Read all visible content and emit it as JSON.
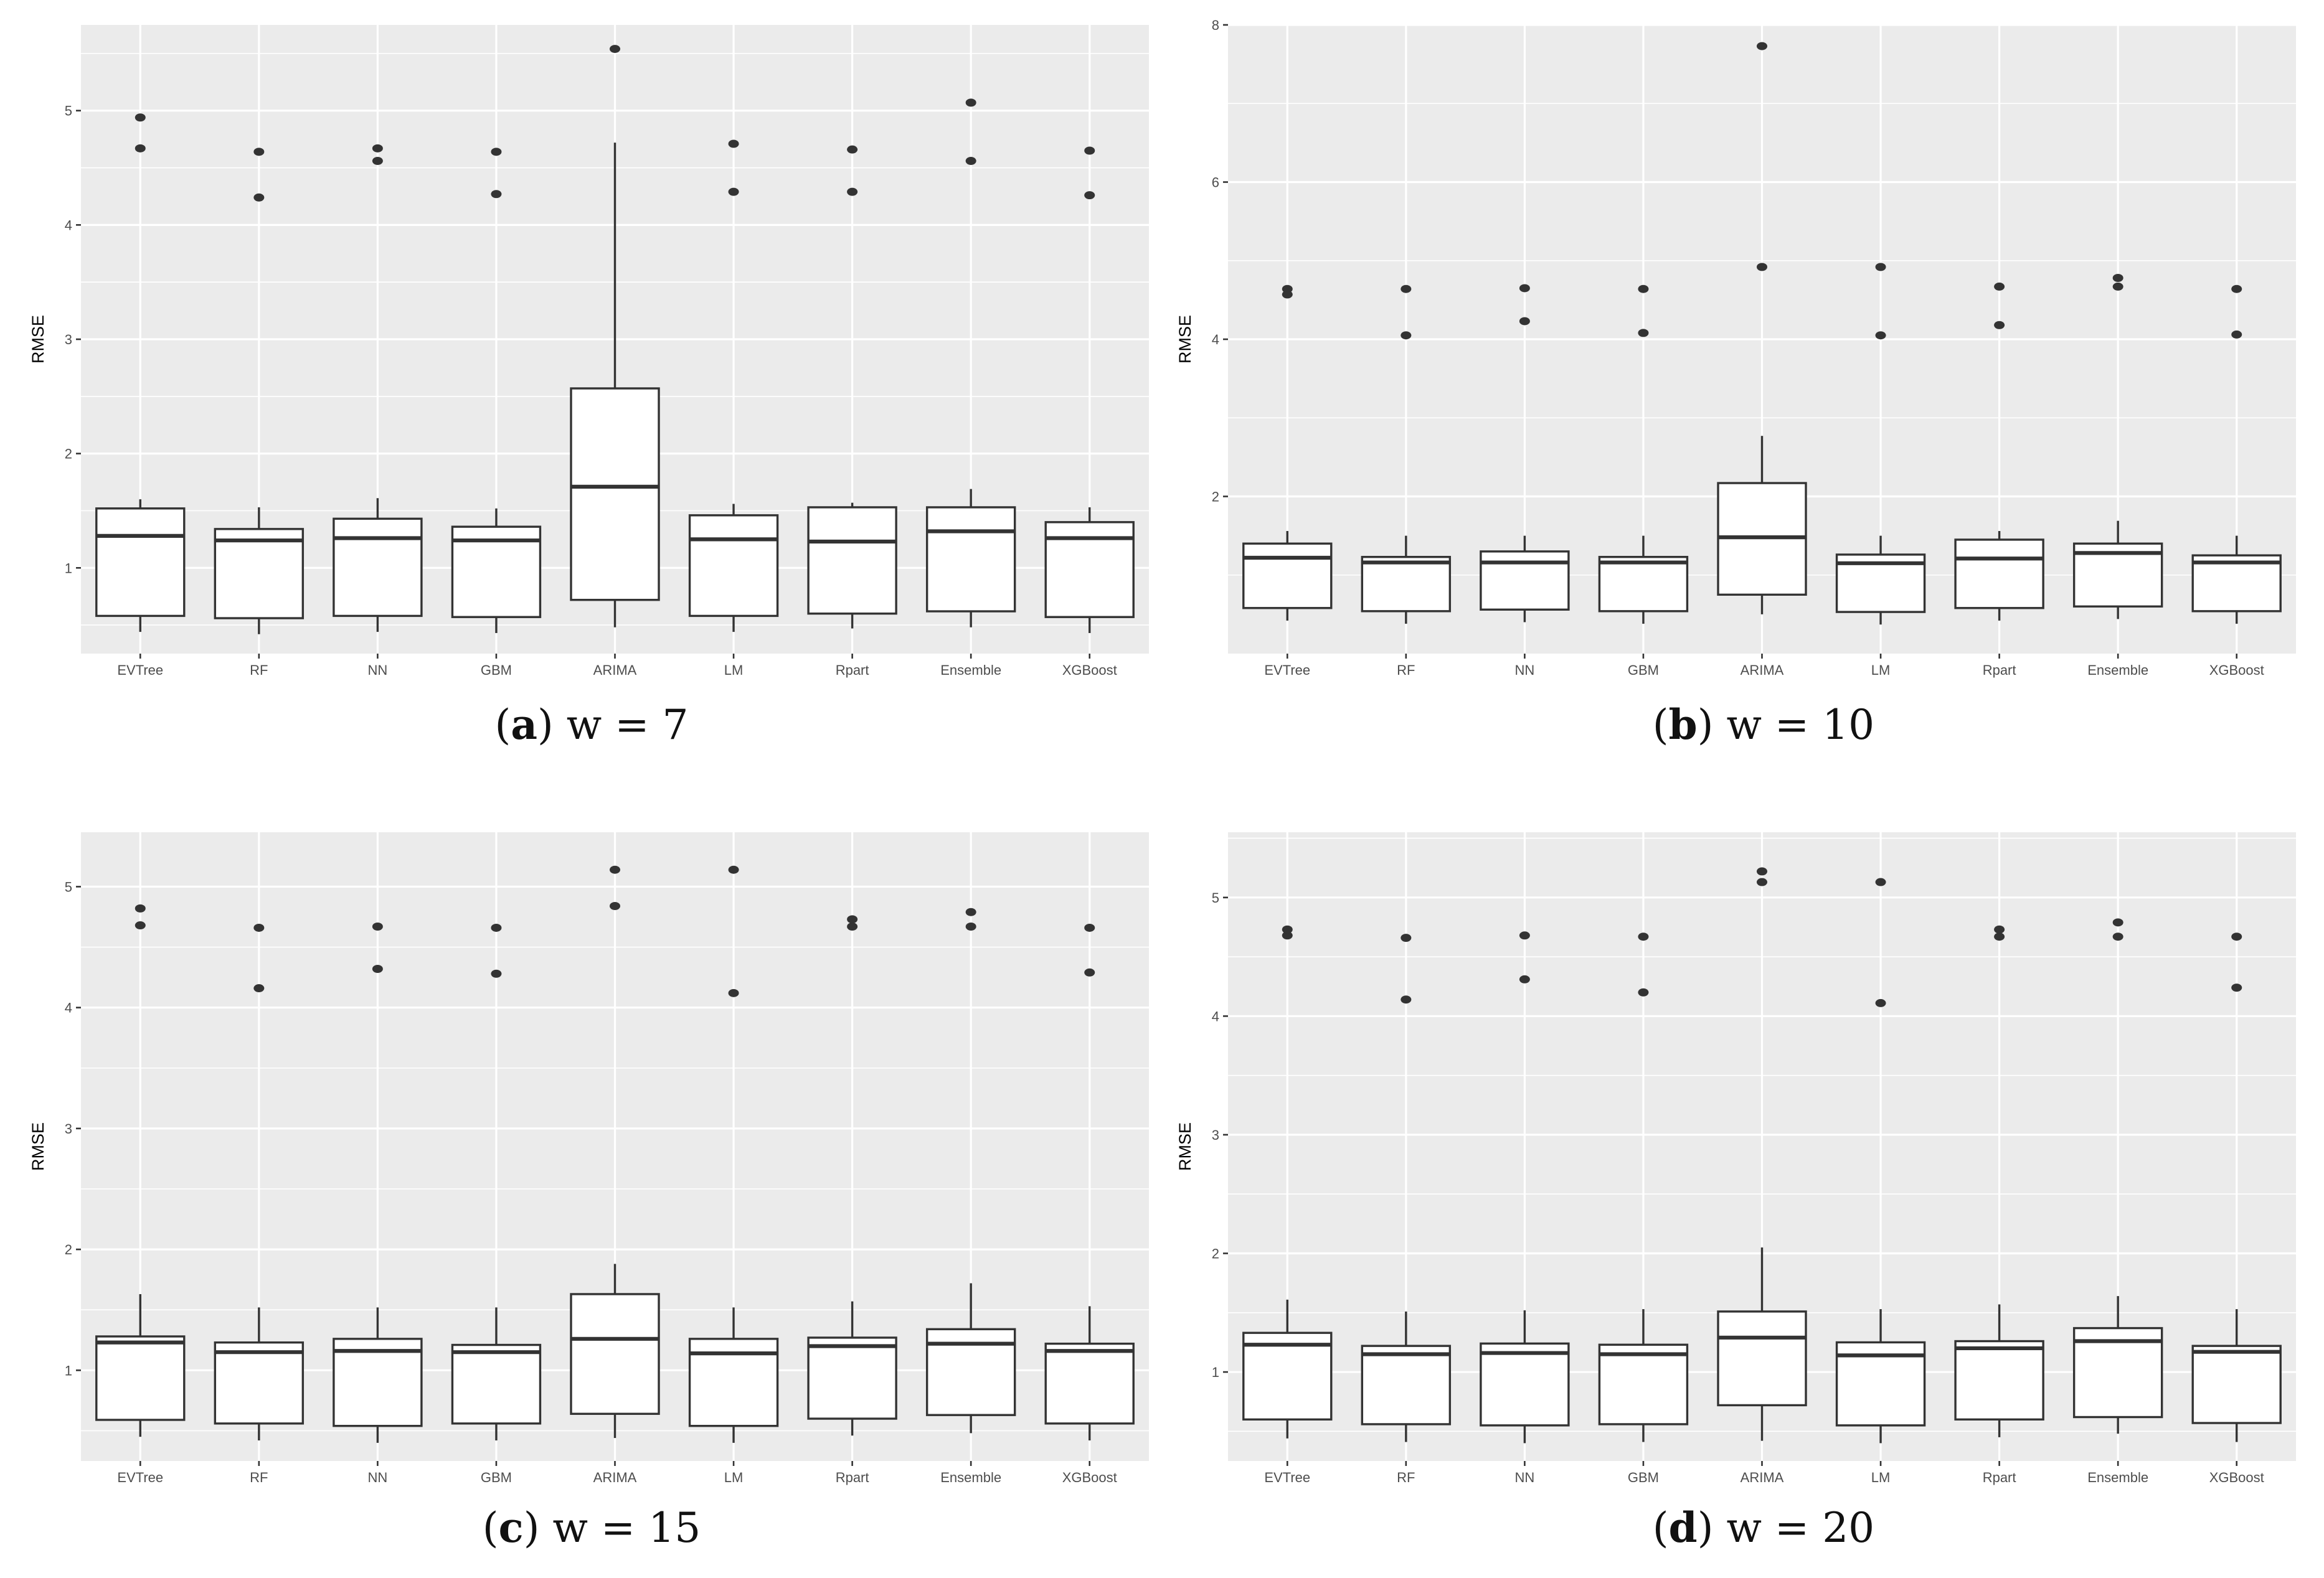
{
  "chart_data": [
    {
      "type": "box",
      "caption_label": "a",
      "caption_text": "w = 7",
      "ylabel": "RMSE",
      "ylim": [
        0.25,
        5.75
      ],
      "yticks": [
        "1",
        "2",
        "3",
        "4",
        "5"
      ],
      "categories": [
        "EVTree",
        "RF",
        "NN",
        "GBM",
        "ARIMA",
        "LM",
        "Rpart",
        "Ensemble",
        "XGBoost"
      ],
      "boxes": [
        {
          "whisker_low": 0.44,
          "q1": 0.58,
          "median": 1.28,
          "q3": 1.52,
          "whisker_high": 1.6,
          "outliers": [
            4.67,
            4.94
          ]
        },
        {
          "whisker_low": 0.42,
          "q1": 0.56,
          "median": 1.24,
          "q3": 1.34,
          "whisker_high": 1.53,
          "outliers": [
            4.24,
            4.64
          ]
        },
        {
          "whisker_low": 0.44,
          "q1": 0.58,
          "median": 1.26,
          "q3": 1.43,
          "whisker_high": 1.61,
          "outliers": [
            4.56,
            4.67
          ]
        },
        {
          "whisker_low": 0.43,
          "q1": 0.57,
          "median": 1.24,
          "q3": 1.36,
          "whisker_high": 1.52,
          "outliers": [
            4.27,
            4.64
          ]
        },
        {
          "whisker_low": 0.48,
          "q1": 0.72,
          "median": 1.71,
          "q3": 2.57,
          "whisker_high": 4.72,
          "outliers": [
            5.54
          ]
        },
        {
          "whisker_low": 0.44,
          "q1": 0.58,
          "median": 1.25,
          "q3": 1.46,
          "whisker_high": 1.56,
          "outliers": [
            4.29,
            4.71
          ]
        },
        {
          "whisker_low": 0.47,
          "q1": 0.6,
          "median": 1.23,
          "q3": 1.53,
          "whisker_high": 1.57,
          "outliers": [
            4.29,
            4.66
          ]
        },
        {
          "whisker_low": 0.48,
          "q1": 0.62,
          "median": 1.32,
          "q3": 1.53,
          "whisker_high": 1.69,
          "outliers": [
            4.56,
            5.07
          ]
        },
        {
          "whisker_low": 0.43,
          "q1": 0.57,
          "median": 1.26,
          "q3": 1.4,
          "whisker_high": 1.53,
          "outliers": [
            4.26,
            4.65
          ]
        }
      ]
    },
    {
      "type": "box",
      "caption_label": "b",
      "caption_text": "w = 10",
      "ylabel": "RMSE",
      "ylim": [
        0.0,
        8.0
      ],
      "yticks": [
        "2",
        "4",
        "6",
        "8"
      ],
      "categories": [
        "EVTree",
        "RF",
        "NN",
        "GBM",
        "ARIMA",
        "LM",
        "Rpart",
        "Ensemble",
        "XGBoost"
      ],
      "boxes": [
        {
          "whisker_low": 0.42,
          "q1": 0.58,
          "median": 1.22,
          "q3": 1.4,
          "whisker_high": 1.56,
          "outliers": [
            4.57,
            4.64
          ]
        },
        {
          "whisker_low": 0.38,
          "q1": 0.54,
          "median": 1.16,
          "q3": 1.23,
          "whisker_high": 1.5,
          "outliers": [
            4.05,
            4.64
          ]
        },
        {
          "whisker_low": 0.4,
          "q1": 0.56,
          "median": 1.16,
          "q3": 1.3,
          "whisker_high": 1.5,
          "outliers": [
            4.23,
            4.65
          ]
        },
        {
          "whisker_low": 0.38,
          "q1": 0.54,
          "median": 1.16,
          "q3": 1.23,
          "whisker_high": 1.5,
          "outliers": [
            4.08,
            4.64
          ]
        },
        {
          "whisker_low": 0.5,
          "q1": 0.75,
          "median": 1.48,
          "q3": 2.17,
          "whisker_high": 2.77,
          "outliers": [
            4.92,
            7.73
          ]
        },
        {
          "whisker_low": 0.37,
          "q1": 0.53,
          "median": 1.15,
          "q3": 1.26,
          "whisker_high": 1.5,
          "outliers": [
            4.05,
            4.92
          ]
        },
        {
          "whisker_low": 0.42,
          "q1": 0.58,
          "median": 1.21,
          "q3": 1.45,
          "whisker_high": 1.56,
          "outliers": [
            4.18,
            4.67
          ]
        },
        {
          "whisker_low": 0.44,
          "q1": 0.6,
          "median": 1.28,
          "q3": 1.4,
          "whisker_high": 1.69,
          "outliers": [
            4.67,
            4.78
          ]
        },
        {
          "whisker_low": 0.38,
          "q1": 0.54,
          "median": 1.16,
          "q3": 1.25,
          "whisker_high": 1.5,
          "outliers": [
            4.06,
            4.64
          ]
        }
      ]
    },
    {
      "type": "box",
      "caption_label": "c",
      "caption_text": "w = 15",
      "ylabel": "RMSE",
      "ylim": [
        0.25,
        5.45
      ],
      "yticks": [
        "1",
        "2",
        "3",
        "4",
        "5"
      ],
      "categories": [
        "EVTree",
        "RF",
        "NN",
        "GBM",
        "ARIMA",
        "LM",
        "Rpart",
        "Ensemble",
        "XGBoost"
      ],
      "boxes": [
        {
          "whisker_low": 0.45,
          "q1": 0.59,
          "median": 1.23,
          "q3": 1.28,
          "whisker_high": 1.63,
          "outliers": [
            4.68,
            4.82
          ]
        },
        {
          "whisker_low": 0.42,
          "q1": 0.56,
          "median": 1.15,
          "q3": 1.23,
          "whisker_high": 1.52,
          "outliers": [
            4.16,
            4.66
          ]
        },
        {
          "whisker_low": 0.4,
          "q1": 0.54,
          "median": 1.16,
          "q3": 1.26,
          "whisker_high": 1.52,
          "outliers": [
            4.32,
            4.67
          ]
        },
        {
          "whisker_low": 0.42,
          "q1": 0.56,
          "median": 1.15,
          "q3": 1.21,
          "whisker_high": 1.52,
          "outliers": [
            4.28,
            4.66
          ]
        },
        {
          "whisker_low": 0.44,
          "q1": 0.64,
          "median": 1.26,
          "q3": 1.63,
          "whisker_high": 1.88,
          "outliers": [
            4.84,
            5.14
          ]
        },
        {
          "whisker_low": 0.4,
          "q1": 0.54,
          "median": 1.14,
          "q3": 1.26,
          "whisker_high": 1.52,
          "outliers": [
            4.12,
            5.14
          ]
        },
        {
          "whisker_low": 0.46,
          "q1": 0.6,
          "median": 1.2,
          "q3": 1.27,
          "whisker_high": 1.57,
          "outliers": [
            4.67,
            4.73
          ]
        },
        {
          "whisker_low": 0.48,
          "q1": 0.63,
          "median": 1.22,
          "q3": 1.34,
          "whisker_high": 1.72,
          "outliers": [
            4.67,
            4.79
          ]
        },
        {
          "whisker_low": 0.42,
          "q1": 0.56,
          "median": 1.16,
          "q3": 1.22,
          "whisker_high": 1.53,
          "outliers": [
            4.29,
            4.66
          ]
        }
      ]
    },
    {
      "type": "box",
      "caption_label": "d",
      "caption_text": "w = 20",
      "ylabel": "RMSE",
      "ylim": [
        0.25,
        5.55
      ],
      "yticks": [
        "1",
        "2",
        "3",
        "4",
        "5"
      ],
      "categories": [
        "EVTree",
        "RF",
        "NN",
        "GBM",
        "ARIMA",
        "LM",
        "Rpart",
        "Ensemble",
        "XGBoost"
      ],
      "boxes": [
        {
          "whisker_low": 0.44,
          "q1": 0.6,
          "median": 1.23,
          "q3": 1.33,
          "whisker_high": 1.61,
          "outliers": [
            4.68,
            4.73
          ]
        },
        {
          "whisker_low": 0.41,
          "q1": 0.56,
          "median": 1.15,
          "q3": 1.22,
          "whisker_high": 1.51,
          "outliers": [
            4.14,
            4.66
          ]
        },
        {
          "whisker_low": 0.4,
          "q1": 0.55,
          "median": 1.16,
          "q3": 1.24,
          "whisker_high": 1.52,
          "outliers": [
            4.31,
            4.68
          ]
        },
        {
          "whisker_low": 0.41,
          "q1": 0.56,
          "median": 1.15,
          "q3": 1.23,
          "whisker_high": 1.53,
          "outliers": [
            4.2,
            4.67
          ]
        },
        {
          "whisker_low": 0.42,
          "q1": 0.72,
          "median": 1.29,
          "q3": 1.51,
          "whisker_high": 2.05,
          "outliers": [
            5.13,
            5.22
          ]
        },
        {
          "whisker_low": 0.4,
          "q1": 0.55,
          "median": 1.14,
          "q3": 1.25,
          "whisker_high": 1.53,
          "outliers": [
            4.11,
            5.13
          ]
        },
        {
          "whisker_low": 0.45,
          "q1": 0.6,
          "median": 1.2,
          "q3": 1.26,
          "whisker_high": 1.57,
          "outliers": [
            4.67,
            4.73
          ]
        },
        {
          "whisker_low": 0.48,
          "q1": 0.62,
          "median": 1.26,
          "q3": 1.37,
          "whisker_high": 1.64,
          "outliers": [
            4.67,
            4.79
          ]
        },
        {
          "whisker_low": 0.41,
          "q1": 0.57,
          "median": 1.17,
          "q3": 1.22,
          "whisker_high": 1.53,
          "outliers": [
            4.24,
            4.67
          ]
        }
      ]
    }
  ]
}
